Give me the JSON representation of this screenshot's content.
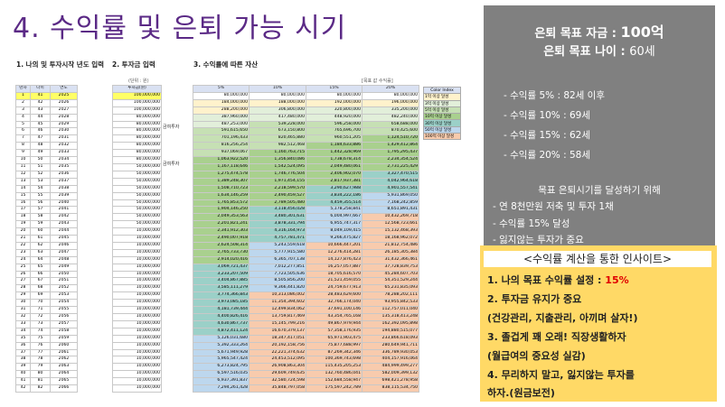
{
  "title": "4. 수익률 및 은퇴 가능 시기",
  "sections": {
    "s1": "1. 나의 및 투자시작 년도 입력",
    "s2": "2. 투자금 입력",
    "s3": "3. 수익률에 따른 자산"
  },
  "notes": {
    "unit_left": "(단위 : 원)",
    "unit_right": "[목표 값 수익률]"
  },
  "table": {
    "headers": [
      "년차",
      "나이",
      "연도",
      "투자금(원)",
      "5%",
      "10%",
      "15%",
      "20%"
    ],
    "band_labels": [
      "금여투자",
      "금여투자"
    ],
    "rows": [
      [
        "1",
        "41",
        "2025",
        "100,000,000",
        "80,000,000",
        "80,000,000",
        "80,000,000",
        "80,000,000"
      ],
      [
        "2",
        "42",
        "2026",
        "100,000,000",
        "184,000,000",
        "188,000,000",
        "192,000,000",
        "196,000,000"
      ],
      [
        "3",
        "43",
        "2027",
        "100,000,000",
        "288,200,000",
        "306,800,000",
        "320,800,000",
        "335,200,000"
      ],
      [
        "4",
        "44",
        "2028",
        "80,000,000",
        "387,960,000",
        "417,480,000",
        "448,920,000",
        "482,240,000"
      ],
      [
        "5",
        "45",
        "2029",
        "80,000,000",
        "487,253,000",
        "539,228,000",
        "596,258,000",
        "658,688,000"
      ],
      [
        "6",
        "46",
        "2030",
        "80,000,000",
        "591,615,650",
        "673,150,800",
        "765,696,700",
        "870,425,600"
      ],
      [
        "7",
        "47",
        "2031",
        "80,000,000",
        "701,196,433",
        "820,465,880",
        "960,551,205",
        "1,124,510,720"
      ],
      [
        "8",
        "48",
        "2032",
        "80,000,000",
        "816,256,254",
        "982,512,468",
        "1,184,633,886",
        "1,429,412,864"
      ],
      [
        "9",
        "49",
        "2033",
        "80,000,000",
        "937,069,067",
        "1,160,763,715",
        "1,442,328,969",
        "1,795,295,437"
      ],
      [
        "10",
        "50",
        "2034",
        "80,000,000",
        "1,063,922,520",
        "1,356,840,086",
        "1,738,678,314",
        "2,234,354,524"
      ],
      [
        "11",
        "51",
        "2035",
        "50,000,000",
        "1,167,118,646",
        "1,542,524,095",
        "2,049,480,061",
        "2,731,225,429"
      ],
      [
        "12",
        "52",
        "2036",
        "50,000,000",
        "1,275,474,578",
        "1,746,776,504",
        "2,406,902,070",
        "3,327,470,515"
      ],
      [
        "13",
        "53",
        "2037",
        "50,000,000",
        "1,389,248,307",
        "1,971,454,155",
        "2,817,937,381",
        "4,042,964,618"
      ],
      [
        "14",
        "54",
        "2038",
        "50,000,000",
        "1,508,710,723",
        "2,218,599,570",
        "3,290,627,988",
        "4,901,557,541"
      ],
      [
        "15",
        "55",
        "2039",
        "50,000,000",
        "1,634,146,259",
        "2,490,459,527",
        "3,834,222,186",
        "5,931,869,050"
      ],
      [
        "16",
        "56",
        "2040",
        "50,000,000",
        "1,765,853,572",
        "2,789,505,480",
        "4,459,355,514",
        "7,168,242,859"
      ],
      [
        "17",
        "57",
        "2041",
        "50,000,000",
        "1,904,146,250",
        "3,118,456,028",
        "5,178,258,841",
        "8,651,891,431"
      ],
      [
        "18",
        "58",
        "2042",
        "50,000,000",
        "2,049,353,563",
        "3,480,301,631",
        "6,004,997,667",
        "10,432,269,718"
      ],
      [
        "19",
        "59",
        "2043",
        "50,000,000",
        "2,201,821,241",
        "3,878,331,794",
        "6,955,747,317",
        "12,568,723,661"
      ],
      [
        "20",
        "60",
        "2044",
        "10,000,000",
        "2,341,912,303",
        "4,316,164,973",
        "8,049,109,415",
        "15,132,468,393"
      ],
      [
        "21",
        "61",
        "2045",
        "10,000,000",
        "2,490,007,918",
        "4,757,781,471",
        "9,266,475,827",
        "18,168,962,072"
      ],
      [
        "22",
        "62",
        "2046",
        "10,000,000",
        "2,624,508,314",
        "5,243,559,618",
        "10,666,447,201",
        "21,812,754,486"
      ],
      [
        "23",
        "63",
        "2047",
        "10,000,000",
        "2,765,733,730",
        "5,777,915,580",
        "12,276,414,281",
        "26,185,305,384"
      ],
      [
        "24",
        "64",
        "2048",
        "10,000,000",
        "2,914,020,416",
        "6,365,707,138",
        "14,127,876,423",
        "31,432,366,461"
      ],
      [
        "25",
        "65",
        "2049",
        "10,000,000",
        "3,069,721,437",
        "7,012,277,851",
        "16,257,057,887",
        "37,728,839,753"
      ],
      [
        "26",
        "66",
        "2050",
        "10,000,000",
        "3,233,207,509",
        "7,723,505,636",
        "18,705,616,570",
        "45,284,607,703"
      ],
      [
        "27",
        "67",
        "2051",
        "10,000,000",
        "3,404,867,885",
        "8,505,856,200",
        "21,521,459,055",
        "54,351,529,244"
      ],
      [
        "28",
        "68",
        "2052",
        "10,000,000",
        "3,585,111,279",
        "9,366,441,820",
        "24,759,677,913",
        "65,231,835,093"
      ],
      [
        "29",
        "69",
        "2053",
        "10,000,000",
        "3,774,366,843",
        "10,313,086,002",
        "28,483,629,600",
        "78,288,202,111"
      ],
      [
        "30",
        "70",
        "2054",
        "10,000,000",
        "3,973,085,185",
        "11,354,394,602",
        "32,766,174,040",
        "93,955,842,533"
      ],
      [
        "31",
        "71",
        "2055",
        "10,000,000",
        "4,181,739,444",
        "12,499,834,062",
        "37,691,100,146",
        "112,757,011,040"
      ],
      [
        "32",
        "72",
        "2056",
        "10,000,000",
        "4,400,826,416",
        "13,759,817,469",
        "43,354,765,168",
        "135,318,413,248"
      ],
      [
        "33",
        "73",
        "2057",
        "10,000,000",
        "4,630,867,737",
        "15,145,799,216",
        "49,867,979,944",
        "162,392,095,898"
      ],
      [
        "34",
        "74",
        "2058",
        "10,000,000",
        "4,872,411,124",
        "16,670,379,137",
        "57,358,176,935",
        "194,880,515,077"
      ],
      [
        "35",
        "75",
        "2059",
        "10,000,000",
        "5,126,031,680",
        "18,347,417,051",
        "65,971,903,475",
        "233,866,618,093"
      ],
      [
        "36",
        "76",
        "2060",
        "10,000,000",
        "5,392,333,264",
        "20,192,158,756",
        "75,877,688,997",
        "280,649,941,711"
      ],
      [
        "37",
        "77",
        "2061",
        "10,000,000",
        "5,671,949,928",
        "22,221,374,632",
        "87,269,342,346",
        "336,789,930,053"
      ],
      [
        "38",
        "78",
        "2062",
        "10,000,000",
        "5,965,547,424",
        "24,453,512,095",
        "100,369,743,698",
        "404,157,916,064"
      ],
      [
        "39",
        "79",
        "2063",
        "10,000,000",
        "6,273,824,795",
        "26,908,863,304",
        "115,435,205,253",
        "484,999,499,277"
      ],
      [
        "40",
        "80",
        "2064",
        "10,000,000",
        "6,597,516,035",
        "29,609,749,635",
        "132,760,486,041",
        "582,009,399,132"
      ],
      [
        "41",
        "81",
        "2065",
        "10,000,000",
        "6,937,391,837",
        "32,580,724,598",
        "152,684,558,947",
        "698,421,278,958"
      ],
      [
        "42",
        "82",
        "2066",
        "10,000,000",
        "7,294,261,428",
        "35,848,797,058",
        "175,597,242,789",
        "838,115,534,750"
      ]
    ]
  },
  "legend": {
    "header": "Color Index",
    "items": [
      "1억 이상 달성",
      "3억 이상 달성",
      "5억 이상 달성",
      "10억 이상 달성",
      "30억 이상 달성",
      "50억 이상 달성",
      "100억 이상 달성"
    ],
    "colors": [
      "#fff2cc",
      "#e2efda",
      "#c6e0b4",
      "#a9d08e",
      "#9bd0c8",
      "#bdd7ee",
      "#f8cbad"
    ]
  },
  "panel": {
    "goal_amount_label": "은퇴 목표 자금 : ",
    "goal_amount_value": "100억",
    "goal_age_label": "은퇴 목표 나이 : ",
    "goal_age_value": "60세",
    "results": [
      "- 수익률   5% : 82세 이후",
      "- 수익률 10% : 69세",
      "- 수익률 15% : 62세",
      "- 수익률 20% : 58세"
    ],
    "subheading": "목표 은퇴시기를 달성하기 위해",
    "bullets": [
      "-  연 8천만원 저축 및 투자 1채",
      "-  수익률 15% 달성",
      "-  잃지않는 투자가 중요"
    ]
  },
  "insight": {
    "header": "<수익률 계산을 통한 인사이트>",
    "line1_prefix": "1. 나의 목표 수익률 설정 : ",
    "line1_value": "15%",
    "line2": "2. 투자금 유지가 중요",
    "line3": "(건강관리, 지출관리, 아끼며 살자!)",
    "line4": "3. 졸겁게 꽤 오래! 직장생활하자",
    "line5": "(월급여의 중요성 실감)",
    "line6": "4. 무리하지 말고, 잃지않는 투자를",
    "line7": "하자.(원금보전)"
  }
}
